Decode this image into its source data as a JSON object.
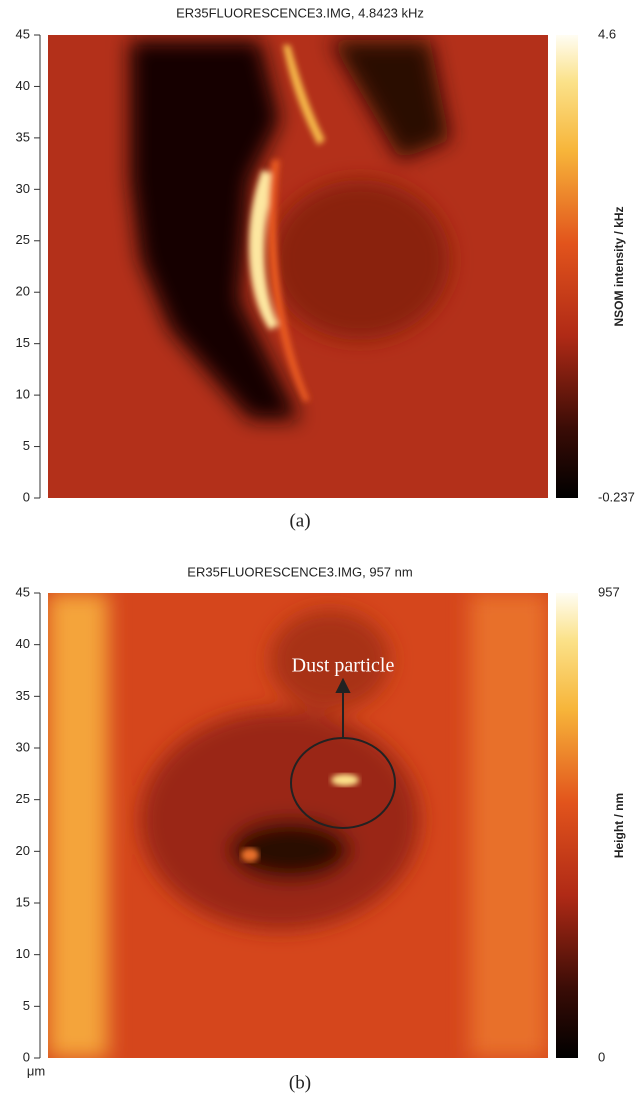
{
  "chart_data": [
    {
      "type": "heatmap",
      "title": "ER35FLUORESCENCE3.IMG, 4.8423 kHz",
      "ylim": [
        0,
        45
      ],
      "yticks": [
        0,
        5,
        10,
        15,
        20,
        25,
        30,
        35,
        40,
        45
      ],
      "colorbar_label": "NSOM intensity / kHz",
      "colorbar_lim": [
        -0.237,
        4.6
      ],
      "colorbar_ticks": [
        -0.237,
        4.6
      ],
      "caption": "(a)"
    },
    {
      "type": "heatmap",
      "title": "ER35FLUORESCENCE3.IMG, 957 nm",
      "ylim": [
        0,
        45
      ],
      "yticks": [
        0,
        5,
        10,
        15,
        20,
        25,
        30,
        35,
        40,
        45
      ],
      "colorbar_label": "Height / nm",
      "colorbar_lim": [
        0,
        957
      ],
      "colorbar_ticks": [
        0,
        957
      ],
      "x_unit": "μm",
      "annotation": "Dust particle",
      "caption": "(b)"
    }
  ]
}
